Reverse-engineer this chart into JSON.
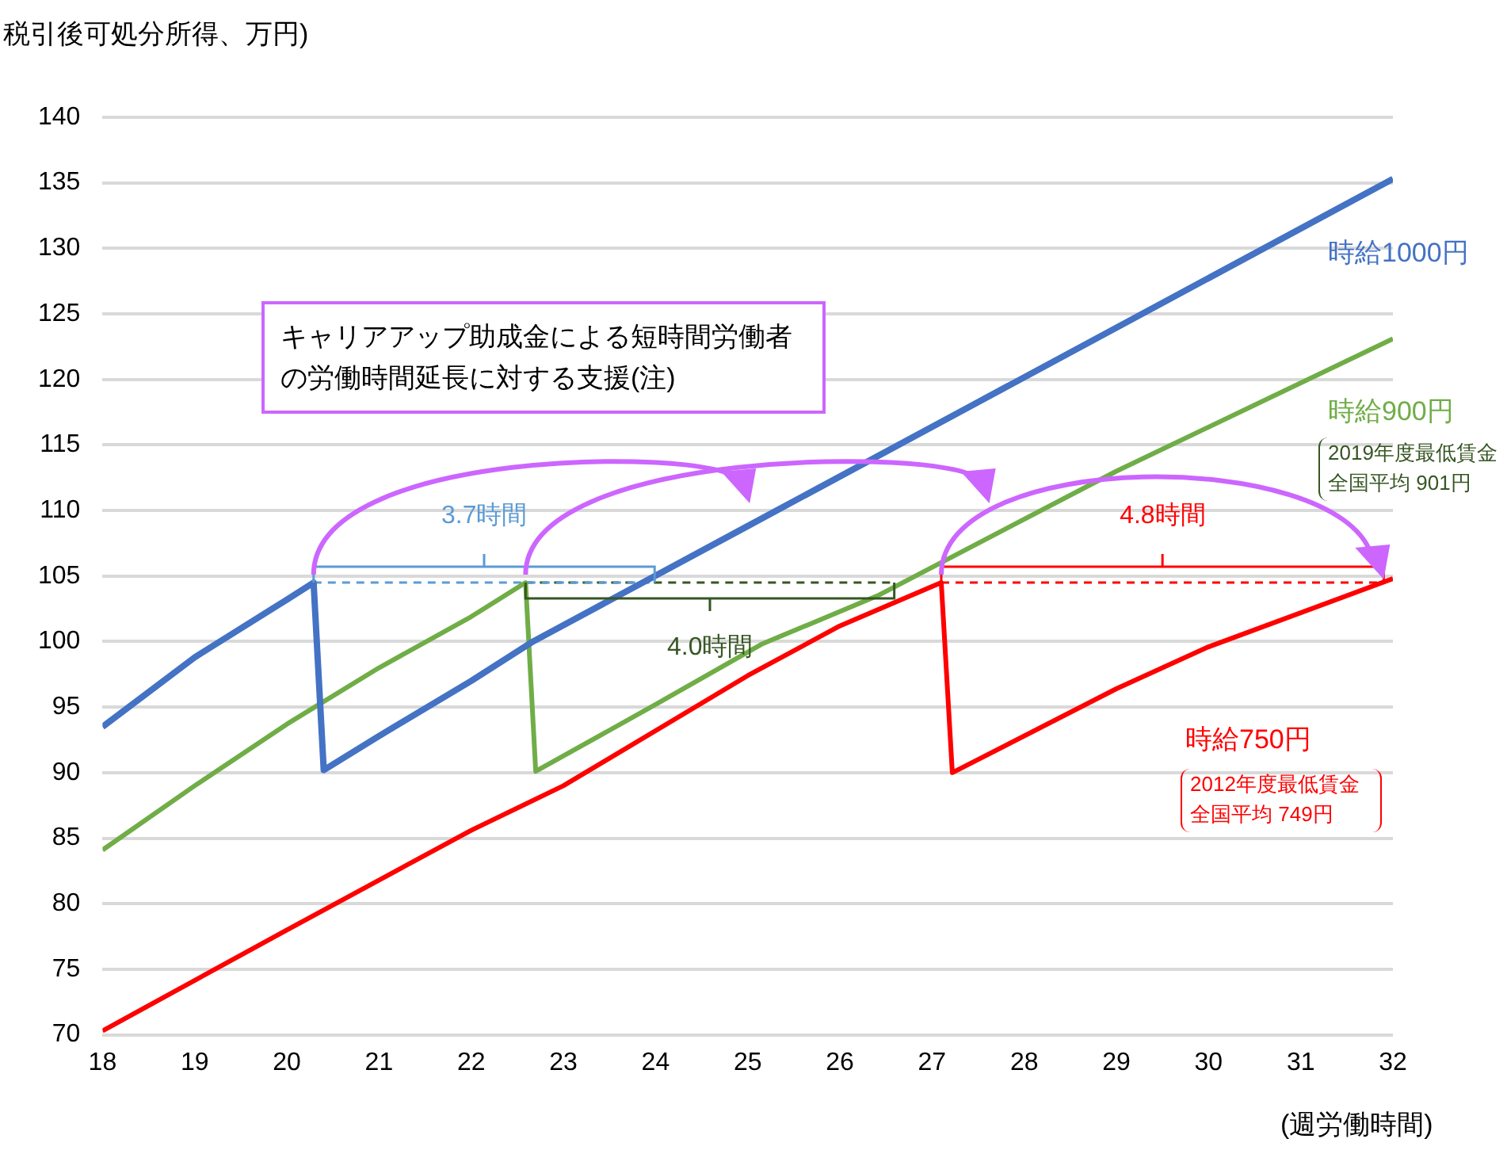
{
  "chart_data": {
    "type": "line",
    "ylabel": "税引後可処分所得、万円)",
    "xlabel": "(週労働時間)",
    "xlim": [
      18,
      32
    ],
    "xticks": [
      18,
      19,
      20,
      21,
      22,
      23,
      24,
      25,
      26,
      27,
      28,
      29,
      30,
      31,
      32
    ],
    "ylim": [
      70,
      140
    ],
    "yticks": [
      70,
      75,
      80,
      85,
      90,
      95,
      100,
      105,
      110,
      115,
      120,
      125,
      130,
      135,
      140
    ],
    "grid": "y",
    "legend": false,
    "marker": "none",
    "annotations": [
      "キャリアアップ助成金による短時間労働者の労働時間延長に対する支援(注)",
      "2019年度最低賃金全国平均 901円",
      "2012年度最低賃金全国平均 749円",
      "3.7時間",
      "4.0時間",
      "4.8時間"
    ],
    "series": [
      {
        "name": "時給1000円",
        "color": "#4472c4",
        "x": [
          18,
          19,
          20,
          20.29,
          20.4,
          21,
          22,
          22.67,
          24.97,
          32
        ],
        "values": [
          93.5,
          98.8,
          103.2,
          104.5,
          90.2,
          92.8,
          97,
          100,
          108.7,
          135.3
        ]
      },
      {
        "name": "時給900円",
        "color": "#70ad47",
        "x": [
          18,
          19,
          20,
          21,
          22,
          22.59,
          22.7,
          24,
          25.15,
          26.41,
          29,
          32
        ],
        "values": [
          84.1,
          89,
          93.7,
          98,
          101.9,
          104.5,
          90.1,
          95.2,
          99.8,
          103.5,
          113,
          123.1
        ]
      },
      {
        "name": "時給750円",
        "color": "#ff0000",
        "x": [
          18,
          20,
          22,
          23,
          25,
          26,
          27.1,
          27.22,
          29,
          30,
          32
        ],
        "values": [
          70.3,
          78,
          85.6,
          89,
          97.4,
          101.2,
          104.5,
          90,
          96.4,
          99.6,
          104.8
        ]
      },
      {
        "color": "#5b9bd5",
        "line_style": "dashed",
        "x": [
          20.29,
          23.99
        ],
        "values": [
          104.5,
          104.5
        ]
      },
      {
        "color": "#375623",
        "line_style": "dashed",
        "x": [
          22.59,
          26.59
        ],
        "values": [
          104.5,
          104.5
        ]
      },
      {
        "color": "#ff0000",
        "line_style": "dashed",
        "x": [
          27.1,
          31.9
        ],
        "values": [
          104.5,
          104.5
        ]
      }
    ]
  }
}
